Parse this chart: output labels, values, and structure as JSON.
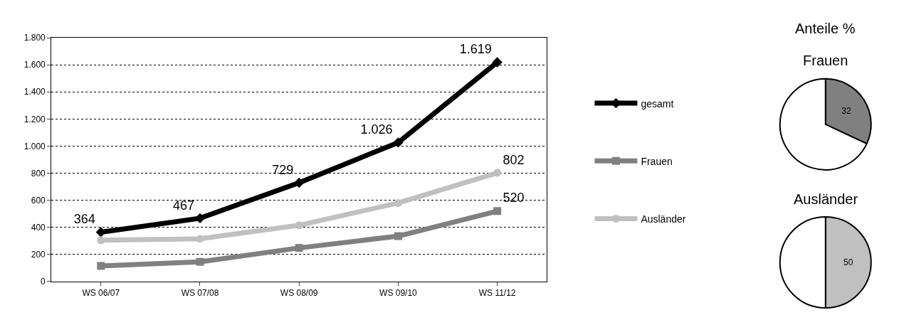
{
  "chart_data": [
    {
      "type": "line",
      "categories": [
        "WS 06/07",
        "WS 07/08",
        "WS 08/09",
        "WS 09/10",
        "WS 11/12"
      ],
      "series": [
        {
          "name": "gesamt",
          "color": "#000000",
          "marker": "diamond",
          "values": [
            364,
            467,
            729,
            1026,
            1619
          ],
          "value_labels": [
            "364",
            "467",
            "729",
            "1.026",
            "1.619"
          ]
        },
        {
          "name": "Frauen",
          "color": "#808080",
          "marker": "square",
          "values": [
            115,
            145,
            248,
            335,
            520
          ],
          "value_labels": [
            null,
            null,
            null,
            null,
            "520"
          ]
        },
        {
          "name": "Ausländer",
          "color": "#c0c0c0",
          "marker": "circle",
          "values": [
            305,
            315,
            415,
            580,
            802
          ],
          "value_labels": [
            null,
            null,
            null,
            null,
            "802"
          ]
        }
      ],
      "ylim": [
        0,
        1800
      ],
      "yticks": [
        0,
        200,
        400,
        600,
        800,
        {
          "value": 1000,
          "label": "1.000"
        },
        {
          "value": 1200,
          "label": "1.200"
        },
        {
          "value": 1400,
          "label": "1.400"
        },
        {
          "value": 1600,
          "label": "1.600"
        },
        {
          "value": 1800,
          "label": "1.800"
        }
      ],
      "grid": "y",
      "legend": "right",
      "line_style": "solid"
    },
    {
      "type": "pie",
      "title": "Anteile %",
      "subtitle": "Frauen",
      "categories": [
        null,
        null
      ],
      "values": [
        32,
        68
      ],
      "colors": [
        "#808080",
        "#ffffff"
      ],
      "value_labels": [
        "32",
        null
      ]
    },
    {
      "type": "pie",
      "title": "Ausländer",
      "categories": [
        null,
        null
      ],
      "values": [
        50,
        50
      ],
      "colors": [
        "#c0c0c0",
        "#ffffff"
      ],
      "value_labels": [
        "50",
        null
      ]
    }
  ]
}
